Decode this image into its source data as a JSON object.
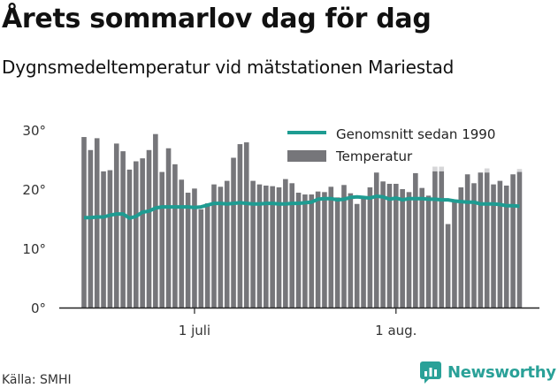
{
  "title": "Årets sommarlov dag för dag",
  "subtitle": "Dygnsmedeltemperatur vid mätstationen Mariestad",
  "source": "Källa: SMHI",
  "brand": {
    "name": "Newsworthy",
    "icon": "newsworthy-logo-icon"
  },
  "colors": {
    "bar": "#76767a",
    "bar_light": "#d6d6d8",
    "line": "#1e9c92",
    "brand": "#2aa198"
  },
  "chart_data": {
    "type": "bar",
    "xlabel": "",
    "ylabel": "",
    "ylim": [
      0,
      32
    ],
    "y_ticks": [
      0,
      10,
      20,
      30
    ],
    "y_tick_labels": [
      "0°",
      "10°",
      "20°",
      "30°"
    ],
    "x_ticks": [
      {
        "index": 17,
        "label": "1 juli"
      },
      {
        "index": 48,
        "label": "1 aug."
      }
    ],
    "legend": {
      "position": "top-right"
    },
    "grid": false,
    "series": [
      {
        "name": "Temperatur",
        "type": "bar",
        "values": [
          28.8,
          26.6,
          28.6,
          23.0,
          23.2,
          27.7,
          26.4,
          23.3,
          24.7,
          25.2,
          26.6,
          29.3,
          22.9,
          26.9,
          24.2,
          21.6,
          19.4,
          20.1,
          16.6,
          17.6,
          20.8,
          20.4,
          21.4,
          25.3,
          27.6,
          27.9,
          21.4,
          20.8,
          20.6,
          20.5,
          20.3,
          21.7,
          21.0,
          19.4,
          19.1,
          19.1,
          19.6,
          19.5,
          20.4,
          18.6,
          20.7,
          19.3,
          17.5,
          18.8,
          20.3,
          22.8,
          21.3,
          20.9,
          20.9,
          20.0,
          19.5,
          22.7,
          20.2,
          18.9,
          23.0,
          23.0,
          14.1,
          18.2,
          20.3,
          22.5,
          21.0,
          22.8,
          22.8,
          20.8,
          21.4,
          20.6,
          22.5,
          22.9
        ],
        "upper_values": [
          null,
          null,
          null,
          null,
          null,
          null,
          null,
          null,
          null,
          null,
          null,
          null,
          null,
          null,
          null,
          null,
          null,
          null,
          null,
          null,
          null,
          null,
          null,
          null,
          null,
          null,
          null,
          null,
          null,
          null,
          null,
          null,
          null,
          null,
          null,
          null,
          null,
          null,
          null,
          null,
          null,
          null,
          null,
          null,
          null,
          null,
          null,
          null,
          null,
          null,
          null,
          null,
          null,
          null,
          23.8,
          23.8,
          null,
          null,
          null,
          null,
          null,
          null,
          23.5,
          null,
          null,
          null,
          null,
          23.4
        ]
      },
      {
        "name": "Genomsnitt sedan 1990",
        "type": "line",
        "values": [
          15.2,
          15.2,
          15.3,
          15.3,
          15.6,
          15.8,
          15.8,
          15.1,
          15.4,
          16.1,
          16.3,
          16.8,
          17.0,
          17.0,
          17.0,
          17.0,
          17.0,
          16.9,
          17.0,
          17.3,
          17.6,
          17.6,
          17.5,
          17.6,
          17.7,
          17.6,
          17.5,
          17.5,
          17.6,
          17.6,
          17.5,
          17.5,
          17.6,
          17.6,
          17.7,
          17.8,
          18.3,
          18.4,
          18.4,
          18.2,
          18.3,
          18.6,
          18.7,
          18.6,
          18.5,
          18.8,
          18.7,
          18.3,
          18.5,
          18.2,
          18.4,
          18.4,
          18.4,
          18.3,
          18.3,
          18.2,
          18.2,
          18.0,
          17.9,
          17.8,
          17.8,
          17.5,
          17.5,
          17.5,
          17.4,
          17.2,
          17.2,
          17.1
        ]
      }
    ]
  }
}
